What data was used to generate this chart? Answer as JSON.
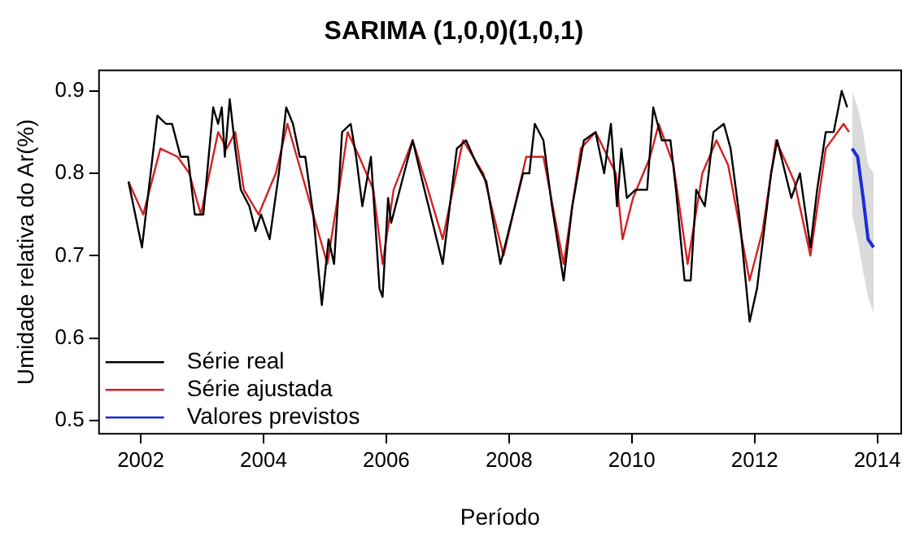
{
  "chart_data": {
    "type": "line",
    "title": "SARIMA (1,0,0)(1,0,1)",
    "xlabel": "Período",
    "ylabel": "Umidade relativa do Ar(%)",
    "xlim": [
      2001.32,
      2014.39
    ],
    "ylim": [
      0.484,
      0.925
    ],
    "xticks": [
      2002,
      2004,
      2006,
      2008,
      2010,
      2012,
      2014
    ],
    "yticks": [
      0.5,
      0.6,
      0.7,
      0.8,
      0.9
    ],
    "grid": false,
    "legend": "bottom left",
    "marker": "none",
    "line_style": "solid",
    "series": [
      {
        "name": "Série real",
        "color": "#000000",
        "x": [
          2001.8,
          2002.02,
          2002.27,
          2002.41,
          2002.51,
          2002.65,
          2002.77,
          2002.88,
          2003.02,
          2003.18,
          2003.26,
          2003.32,
          2003.37,
          2003.45,
          2003.54,
          2003.63,
          2003.77,
          2003.87,
          2003.96,
          2004.1,
          2004.25,
          2004.37,
          2004.48,
          2004.59,
          2004.68,
          2004.81,
          2004.95,
          2005.06,
          2005.15,
          2005.28,
          2005.42,
          2005.51,
          2005.61,
          2005.75,
          2005.89,
          2005.94,
          2006.03,
          2006.08,
          2006.43,
          2006.59,
          2006.92,
          2007.15,
          2007.3,
          2007.48,
          2007.63,
          2007.86,
          2008.23,
          2008.33,
          2008.42,
          2008.56,
          2008.7,
          2008.89,
          2009.03,
          2009.22,
          2009.41,
          2009.55,
          2009.66,
          2009.76,
          2009.83,
          2009.92,
          2010.06,
          2010.25,
          2010.35,
          2010.49,
          2010.63,
          2010.72,
          2010.86,
          2010.96,
          2011.05,
          2011.19,
          2011.33,
          2011.5,
          2011.61,
          2011.75,
          2011.92,
          2012.04,
          2012.27,
          2012.37,
          2012.6,
          2012.74,
          2012.91,
          2013.02,
          2013.16,
          2013.29,
          2013.42,
          2013.51
        ],
        "values": [
          0.79,
          0.71,
          0.87,
          0.86,
          0.86,
          0.82,
          0.82,
          0.75,
          0.75,
          0.88,
          0.86,
          0.88,
          0.82,
          0.89,
          0.83,
          0.78,
          0.76,
          0.73,
          0.75,
          0.72,
          0.8,
          0.88,
          0.86,
          0.82,
          0.82,
          0.75,
          0.64,
          0.72,
          0.69,
          0.85,
          0.86,
          0.82,
          0.76,
          0.82,
          0.66,
          0.65,
          0.77,
          0.74,
          0.84,
          0.79,
          0.69,
          0.83,
          0.84,
          0.81,
          0.79,
          0.69,
          0.8,
          0.8,
          0.86,
          0.84,
          0.76,
          0.67,
          0.76,
          0.84,
          0.85,
          0.8,
          0.86,
          0.76,
          0.83,
          0.77,
          0.78,
          0.78,
          0.88,
          0.84,
          0.84,
          0.78,
          0.67,
          0.67,
          0.78,
          0.76,
          0.85,
          0.86,
          0.83,
          0.75,
          0.62,
          0.66,
          0.8,
          0.84,
          0.77,
          0.8,
          0.71,
          0.78,
          0.85,
          0.85,
          0.9,
          0.88
        ]
      },
      {
        "name": "Série ajustada",
        "color": "#d62020",
        "x": [
          2001.8,
          2002.04,
          2002.32,
          2002.6,
          2002.79,
          2002.98,
          2003.26,
          2003.4,
          2003.54,
          2003.68,
          2003.92,
          2004.2,
          2004.39,
          2004.62,
          2004.81,
          2005.04,
          2005.23,
          2005.37,
          2005.56,
          2005.79,
          2005.94,
          2006.12,
          2006.43,
          2006.64,
          2006.92,
          2007.25,
          2007.58,
          2007.91,
          2008.28,
          2008.56,
          2008.89,
          2009.17,
          2009.41,
          2009.74,
          2009.85,
          2010.02,
          2010.3,
          2010.44,
          2010.68,
          2010.91,
          2011.15,
          2011.38,
          2011.57,
          2011.92,
          2012.13,
          2012.35,
          2012.65,
          2012.91,
          2013.16,
          2013.45,
          2013.54
        ],
        "values": [
          0.79,
          0.75,
          0.83,
          0.82,
          0.8,
          0.75,
          0.85,
          0.83,
          0.85,
          0.78,
          0.75,
          0.8,
          0.86,
          0.8,
          0.75,
          0.69,
          0.78,
          0.85,
          0.82,
          0.78,
          0.69,
          0.78,
          0.84,
          0.79,
          0.72,
          0.84,
          0.8,
          0.7,
          0.82,
          0.82,
          0.69,
          0.83,
          0.85,
          0.8,
          0.72,
          0.77,
          0.82,
          0.86,
          0.81,
          0.69,
          0.8,
          0.84,
          0.81,
          0.67,
          0.73,
          0.84,
          0.79,
          0.7,
          0.83,
          0.86,
          0.85
        ]
      },
      {
        "name": "Valores previstos",
        "color": "#1a2ed8",
        "x": [
          2013.59,
          2013.68,
          2013.77,
          2013.85,
          2013.94
        ],
        "values": [
          0.83,
          0.82,
          0.77,
          0.72,
          0.71
        ],
        "lower": [
          0.75,
          0.72,
          0.68,
          0.65,
          0.63
        ],
        "upper": [
          0.9,
          0.88,
          0.85,
          0.81,
          0.8
        ]
      }
    ]
  }
}
